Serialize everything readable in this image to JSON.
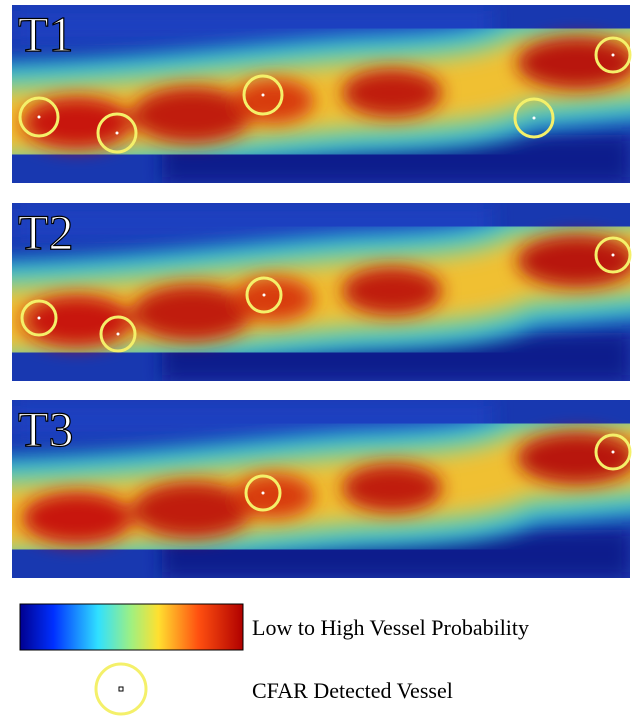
{
  "panels": [
    {
      "label": "T1"
    },
    {
      "label": "T2"
    },
    {
      "label": "T3"
    }
  ],
  "legend": {
    "colorbar_label": "Low to High Vessel Probability",
    "detection_label": "CFAR Detected Vessel"
  }
}
